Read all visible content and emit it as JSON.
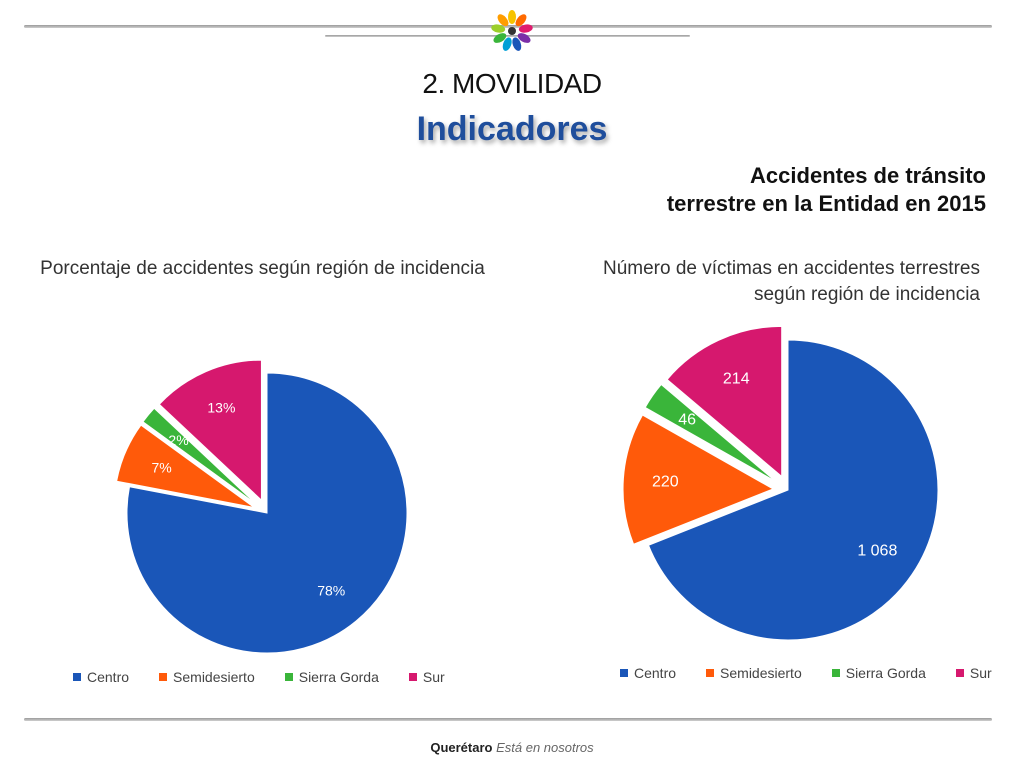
{
  "header": {
    "section_title": "2. MOVILIDAD",
    "main_title": "Indicadores",
    "subtitle_line1": "Accidentes de tránsito",
    "subtitle_line2": "terrestre en la Entidad en 2015"
  },
  "colors": {
    "Centro": "#1a56b8",
    "Semidesierto": "#ff5a0a",
    "Sierra Gorda": "#3ab53a",
    "Sur": "#d6186e",
    "title_blue": "#1f4e9c"
  },
  "chart_data": [
    {
      "type": "pie",
      "title": "Porcentaje de accidentes según región de incidencia",
      "categories": [
        "Centro",
        "Semidesierto",
        "Sierra Gorda",
        "Sur"
      ],
      "values": [
        78,
        7,
        2,
        13
      ],
      "data_labels": [
        "78%",
        "7%",
        "2%",
        "13%"
      ],
      "exploded": true,
      "legend": "bottom"
    },
    {
      "type": "pie",
      "title": "Número de víctimas en accidentes terrestres  según región de incidencia",
      "categories": [
        "Centro",
        "Semidesierto",
        "Sierra Gorda",
        "Sur"
      ],
      "values": [
        1068,
        220,
        46,
        214
      ],
      "data_labels": [
        "1 068",
        "220",
        "46",
        "214"
      ],
      "exploded": true,
      "legend": "bottom"
    }
  ],
  "footer": {
    "brand": "Querétaro",
    "tagline": "Está en nosotros"
  }
}
